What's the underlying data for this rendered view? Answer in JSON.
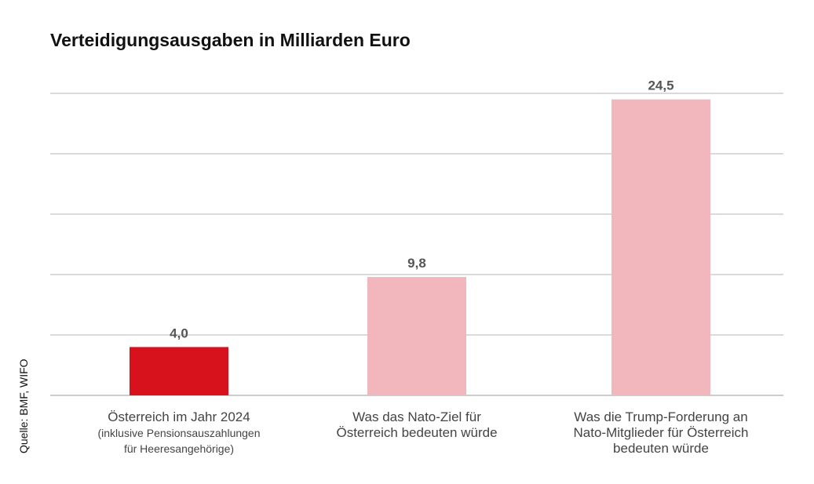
{
  "chart_data": {
    "type": "bar",
    "title": "Verteidigungsausgaben in Milliarden Euro",
    "categories": [
      "Österreich im Jahr 2024",
      "Was das Nato-Ziel für\nÖsterreich bedeuten würde",
      "Was die Trump-Forderung an\nNato-Mitglieder für Österreich\nbedeuten würde"
    ],
    "category_notes": [
      "(inklusive Pensionsauszahlungen\nfür Heeresangehörige)",
      "",
      ""
    ],
    "values": [
      4.0,
      9.8,
      24.5
    ],
    "value_labels": [
      "4,0",
      "9,8",
      "24,5"
    ],
    "bar_colors": [
      "#d7121c",
      "#f2b7bc",
      "#f2b7bc"
    ],
    "ylim": [
      0,
      25
    ],
    "grid": true,
    "source": "Quelle: BMF, WIFO"
  }
}
